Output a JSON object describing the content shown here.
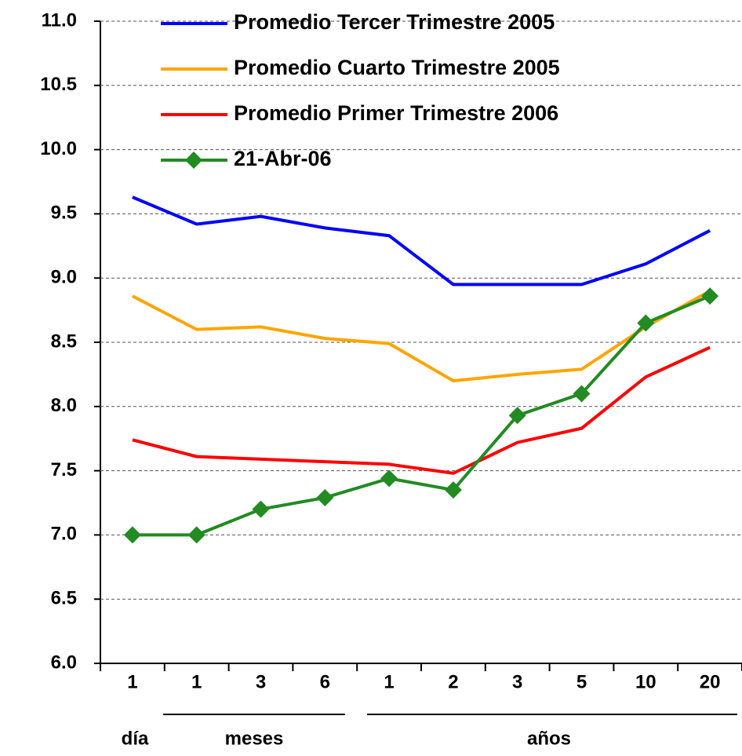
{
  "chart_data": {
    "type": "line",
    "categories": [
      "1",
      "1",
      "3",
      "6",
      "1",
      "2",
      "3",
      "5",
      "10",
      "20"
    ],
    "group_labels": [
      "día",
      "meses",
      "años"
    ],
    "series": [
      {
        "name": "Promedio Tercer Trimestre 2005",
        "color": "#0000ff",
        "values": [
          9.63,
          9.42,
          9.48,
          9.39,
          9.33,
          8.95,
          8.95,
          8.95,
          9.11,
          9.37
        ]
      },
      {
        "name": "Promedio Cuarto Trimestre 2005",
        "color": "#ffa500",
        "values": [
          8.86,
          8.6,
          8.62,
          8.53,
          8.49,
          8.2,
          8.25,
          8.29,
          8.62,
          8.9
        ]
      },
      {
        "name": "Promedio Primer Trimestre 2006",
        "color": "#ff0000",
        "values": [
          7.74,
          7.61,
          7.59,
          7.57,
          7.55,
          7.48,
          7.72,
          7.83,
          8.23,
          8.46
        ]
      },
      {
        "name": "21-Abr-06",
        "color": "#228b22",
        "marker": "diamond",
        "values": [
          7.0,
          7.0,
          7.2,
          7.29,
          7.44,
          7.35,
          7.93,
          8.1,
          8.65,
          8.86
        ]
      }
    ],
    "ylim": [
      6.0,
      11.0
    ],
    "yticks": [
      {
        "value": 6,
        "label": "6.0"
      },
      6.5,
      {
        "value": 7,
        "label": "7.0"
      },
      7.5,
      {
        "value": 8,
        "label": "8.0"
      },
      8.5,
      {
        "value": 9,
        "label": "9.0"
      },
      9.5,
      {
        "value": 10,
        "label": "10.0"
      },
      10.5,
      {
        "value": 11,
        "label": "11.0"
      }
    ],
    "grid": true
  }
}
